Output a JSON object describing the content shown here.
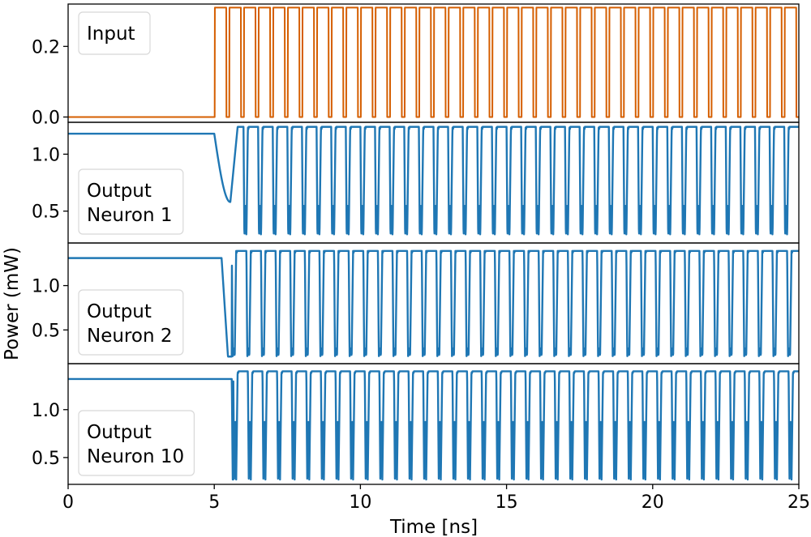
{
  "chart_data": {
    "type": "line",
    "xlabel": "Time [ns]",
    "ylabel": "Power (mW)",
    "xlim": [
      0,
      25
    ],
    "xticks": [
      0,
      5,
      10,
      15,
      20,
      25
    ],
    "xtick_labels": [
      "0",
      "5",
      "10",
      "15",
      "20",
      "25"
    ],
    "colors": {
      "input": "#d55e00",
      "output": "#1f77b4"
    },
    "panels": [
      {
        "id": "input",
        "legend": [
          "Input"
        ],
        "ylim": [
          -0.015,
          0.32
        ],
        "yticks": [
          0.0,
          0.2
        ],
        "ytick_labels": [
          "0.0",
          "0.2"
        ],
        "signal": {
          "kind": "pulse_train",
          "baseline": 0.0,
          "high": 0.31,
          "start_ns": 5.02,
          "period_ns": 0.5,
          "duty": 0.78,
          "pulses": 40
        }
      },
      {
        "id": "neuron1",
        "legend": [
          "Output",
          "Neuron 1"
        ],
        "ylim": [
          0.22,
          1.28
        ],
        "yticks": [
          0.5,
          1.0
        ],
        "ytick_labels": [
          "0.5",
          "1.0"
        ],
        "signal": {
          "kind": "spike_train",
          "rest": 1.18,
          "high": 1.24,
          "onset_ns": 5.0,
          "first_dip": 0.58,
          "min": 0.27,
          "mid": 0.55,
          "period_ns": 0.5,
          "first_spike_ns": 6.0,
          "pattern": "double"
        }
      },
      {
        "id": "neuron2",
        "legend": [
          "Output",
          "Neuron 2"
        ],
        "ylim": [
          0.12,
          1.48
        ],
        "yticks": [
          0.5,
          1.0
        ],
        "ytick_labels": [
          "0.5",
          "1.0"
        ],
        "signal": {
          "kind": "spike_train",
          "rest": 1.31,
          "high": 1.39,
          "onset_ns": 5.25,
          "min": 0.2,
          "mid": 0.3,
          "period_ns": 0.5,
          "first_spike_ns": 5.6,
          "pattern": "double"
        }
      },
      {
        "id": "neuron10",
        "legend": [
          "Output",
          "Neuron 10"
        ],
        "ylim": [
          0.22,
          1.48
        ],
        "yticks": [
          0.5,
          1.0
        ],
        "ytick_labels": [
          "0.5",
          "1.0"
        ],
        "signal": {
          "kind": "spike_train",
          "rest": 1.32,
          "high": 1.4,
          "onset_ns": 5.6,
          "min": 0.27,
          "mid": 0.92,
          "period_ns": 0.5,
          "first_spike_ns": 5.65,
          "pattern": "double"
        }
      }
    ]
  }
}
